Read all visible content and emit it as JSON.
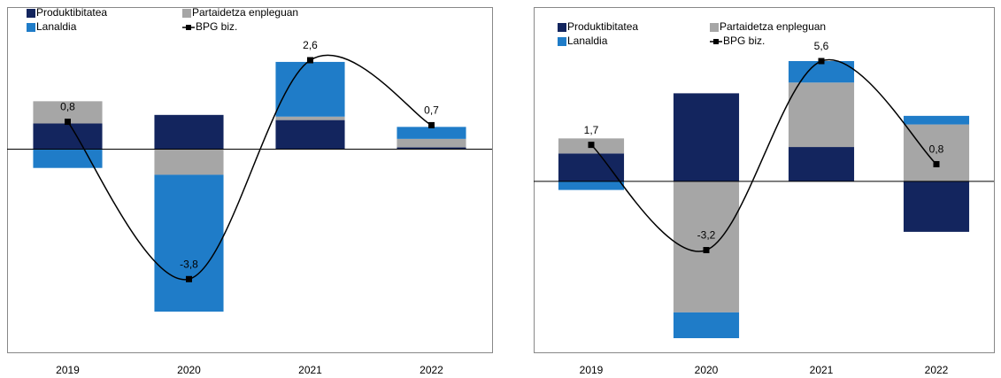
{
  "chart_data": [
    {
      "type": "bar",
      "stacked": true,
      "categories": [
        "2019",
        "2020",
        "2021",
        "2022"
      ],
      "series": [
        {
          "name": "Produktibitatea",
          "color": "#13255e",
          "values": [
            0.75,
            1.0,
            0.85,
            0.05
          ]
        },
        {
          "name": "Partaidetza enpleguan",
          "color": "#a6a6a6",
          "values": [
            0.65,
            -0.75,
            0.1,
            0.25
          ]
        },
        {
          "name": "Lanaldia",
          "color": "#1f7cc8",
          "values": [
            -0.55,
            -4.0,
            1.6,
            0.35
          ]
        },
        {
          "name": "BPG biz.",
          "type": "line",
          "color": "#000000",
          "values": [
            0.8,
            -3.8,
            2.6,
            0.7
          ],
          "value_labels": [
            "0,8",
            "-3,8",
            "2,6",
            "0,7"
          ]
        }
      ]
    },
    {
      "type": "bar",
      "stacked": true,
      "categories": [
        "2019",
        "2020",
        "2021",
        "2022"
      ],
      "series": [
        {
          "name": "Produktibitatea",
          "color": "#13255e",
          "values": [
            1.3,
            4.1,
            1.6,
            -2.35
          ]
        },
        {
          "name": "Partaidetza enpleguan",
          "color": "#a6a6a6",
          "values": [
            0.7,
            -6.1,
            3.0,
            2.65
          ]
        },
        {
          "name": "Lanaldia",
          "color": "#1f7cc8",
          "values": [
            -0.4,
            -1.2,
            1.0,
            0.4
          ]
        },
        {
          "name": "BPG biz.",
          "type": "line",
          "color": "#000000",
          "values": [
            1.7,
            -3.2,
            5.6,
            0.8
          ],
          "value_labels": [
            "1,7",
            "-3,2",
            "5,6",
            "0,8"
          ]
        }
      ]
    }
  ]
}
